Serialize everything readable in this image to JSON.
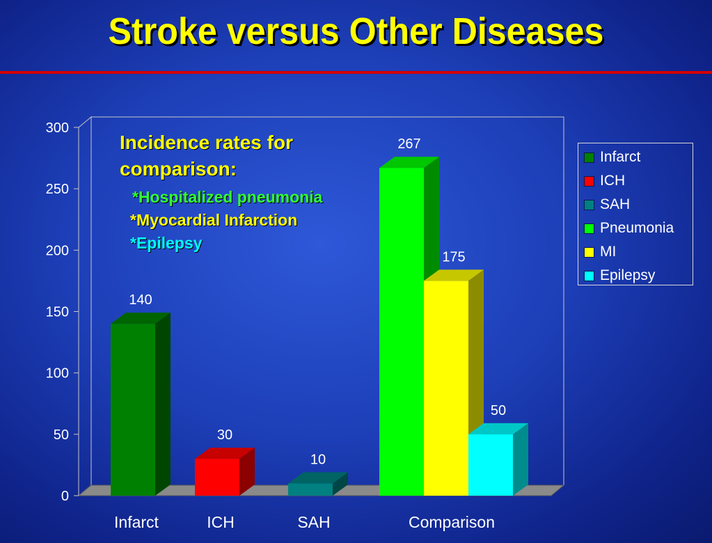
{
  "slide": {
    "title": "Stroke versus Other Diseases"
  },
  "annotation": {
    "heading_line1": "Incidence rates for",
    "heading_line2": "comparison:",
    "item1": "*Hospitalized pneumonia",
    "item2": "*Myocardial Infarction",
    "item3": "*Epilepsy"
  },
  "colors": {
    "title": "#ffff00",
    "title_rule": "#d40000",
    "background": "#1d3fb8"
  },
  "chart_data": {
    "type": "bar",
    "style": "3d-columns",
    "title": "",
    "xlabel": "",
    "ylabel": "",
    "ylim": [
      0,
      300
    ],
    "y_ticks": [
      0,
      50,
      100,
      150,
      200,
      250,
      300
    ],
    "grid": false,
    "legend_position": "right",
    "categories": [
      "Infarct",
      "ICH",
      "SAH",
      "Comparison"
    ],
    "series": [
      {
        "name": "Infarct",
        "color": "#008000",
        "category": "Infarct",
        "value": 140,
        "label": "140"
      },
      {
        "name": "ICH",
        "color": "#ff0000",
        "category": "ICH",
        "value": 30,
        "label": "30"
      },
      {
        "name": "SAH",
        "color": "#008080",
        "category": "SAH",
        "value": 10,
        "label": "10"
      },
      {
        "name": "Pneumonia",
        "color": "#00ff00",
        "category": "Comparison",
        "value": 267,
        "label": "267"
      },
      {
        "name": "MI",
        "color": "#ffff00",
        "category": "Comparison",
        "value": 175,
        "label": "175"
      },
      {
        "name": "Epilepsy",
        "color": "#00ffff",
        "category": "Comparison",
        "value": 50,
        "label": "50"
      }
    ]
  }
}
